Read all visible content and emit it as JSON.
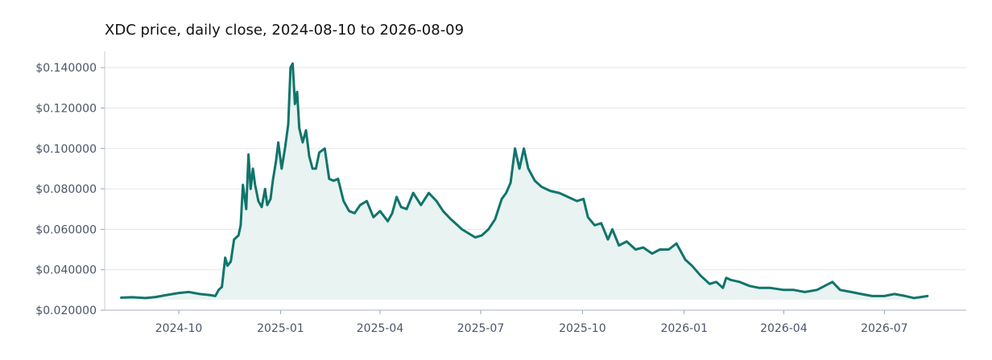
{
  "chart_data": {
    "type": "area",
    "title": "XDC price, daily close, 2024-08-10 to 2026-08-09",
    "xlabel": "",
    "ylabel": "",
    "ylim": [
      0.02,
      0.148
    ],
    "xlim": [
      "2024-07-26",
      "2026-09-13"
    ],
    "grid": "horizontal",
    "line_color": "#10756b",
    "fill_color": "#e9f3f1",
    "y_ticks": [
      "$0.020000",
      "$0.040000",
      "$0.060000",
      "$0.080000",
      "$0.100000",
      "$0.120000",
      "$0.140000"
    ],
    "x_ticks": [
      "2024-10",
      "2025-01",
      "2025-04",
      "2025-07",
      "2025-10",
      "2026-01",
      "2026-04",
      "2026-07"
    ],
    "series": [
      {
        "x": [
          "2024-08-10",
          "2024-08-20",
          "2024-09-01",
          "2024-09-10",
          "2024-09-20",
          "2024-10-01",
          "2024-10-10",
          "2024-10-20",
          "2024-10-29",
          "2024-11-03",
          "2024-11-06",
          "2024-11-08",
          "2024-11-09",
          "2024-11-12",
          "2024-11-14",
          "2024-11-17",
          "2024-11-20",
          "2024-11-24",
          "2024-11-26",
          "2024-11-28",
          "2024-12-01",
          "2024-12-03",
          "2024-12-05",
          "2024-12-07",
          "2024-12-09",
          "2024-12-12",
          "2024-12-15",
          "2024-12-18",
          "2024-12-20",
          "2024-12-23",
          "2024-12-25",
          "2024-12-28",
          "2024-12-30",
          "2025-01-02",
          "2025-01-05",
          "2025-01-08",
          "2025-01-10",
          "2025-01-12",
          "2025-01-14",
          "2025-01-16",
          "2025-01-18",
          "2025-01-21",
          "2025-01-24",
          "2025-01-27",
          "2025-01-30",
          "2025-02-02",
          "2025-02-05",
          "2025-02-10",
          "2025-02-14",
          "2025-02-18",
          "2025-02-22",
          "2025-02-27",
          "2025-03-04",
          "2025-03-09",
          "2025-03-14",
          "2025-03-20",
          "2025-03-26",
          "2025-04-01",
          "2025-04-08",
          "2025-04-12",
          "2025-04-16",
          "2025-04-20",
          "2025-04-25",
          "2025-05-01",
          "2025-05-08",
          "2025-05-15",
          "2025-05-22",
          "2025-05-28",
          "2025-06-04",
          "2025-06-10",
          "2025-06-14",
          "2025-06-20",
          "2025-06-26",
          "2025-07-02",
          "2025-07-08",
          "2025-07-14",
          "2025-07-20",
          "2025-07-24",
          "2025-07-28",
          "2025-08-01",
          "2025-08-05",
          "2025-08-09",
          "2025-08-13",
          "2025-08-19",
          "2025-08-25",
          "2025-09-02",
          "2025-09-10",
          "2025-09-18",
          "2025-09-26",
          "2025-10-02",
          "2025-10-06",
          "2025-10-12",
          "2025-10-18",
          "2025-10-24",
          "2025-10-28",
          "2025-11-03",
          "2025-11-10",
          "2025-11-18",
          "2025-11-25",
          "2025-12-03",
          "2025-12-10",
          "2025-12-18",
          "2025-12-25",
          "2026-01-02",
          "2026-01-08",
          "2026-01-16",
          "2026-01-24",
          "2026-01-30",
          "2026-02-05",
          "2026-02-08",
          "2026-02-12",
          "2026-02-20",
          "2026-03-01",
          "2026-03-10",
          "2026-03-20",
          "2026-04-01",
          "2026-04-10",
          "2026-04-20",
          "2026-05-01",
          "2026-05-08",
          "2026-05-15",
          "2026-05-22",
          "2026-06-01",
          "2026-06-10",
          "2026-06-20",
          "2026-07-01",
          "2026-07-10",
          "2026-07-20",
          "2026-07-28",
          "2026-08-09"
        ],
        "values": [
          0.0262,
          0.0264,
          0.026,
          0.0265,
          0.0275,
          0.0285,
          0.029,
          0.028,
          0.0275,
          0.027,
          0.03,
          0.031,
          0.0315,
          0.046,
          0.042,
          0.044,
          0.055,
          0.057,
          0.062,
          0.082,
          0.07,
          0.097,
          0.08,
          0.09,
          0.082,
          0.074,
          0.071,
          0.08,
          0.072,
          0.075,
          0.084,
          0.094,
          0.103,
          0.09,
          0.1,
          0.112,
          0.14,
          0.142,
          0.122,
          0.128,
          0.11,
          0.103,
          0.109,
          0.096,
          0.09,
          0.09,
          0.098,
          0.1,
          0.085,
          0.084,
          0.085,
          0.074,
          0.069,
          0.068,
          0.072,
          0.074,
          0.066,
          0.069,
          0.064,
          0.068,
          0.076,
          0.071,
          0.07,
          0.078,
          0.072,
          0.078,
          0.074,
          0.069,
          0.065,
          0.062,
          0.06,
          0.058,
          0.056,
          0.057,
          0.06,
          0.065,
          0.075,
          0.078,
          0.083,
          0.1,
          0.09,
          0.1,
          0.09,
          0.084,
          0.081,
          0.079,
          0.078,
          0.076,
          0.074,
          0.075,
          0.066,
          0.062,
          0.063,
          0.055,
          0.06,
          0.052,
          0.054,
          0.05,
          0.051,
          0.048,
          0.05,
          0.05,
          0.053,
          0.045,
          0.042,
          0.037,
          0.033,
          0.034,
          0.031,
          0.036,
          0.035,
          0.034,
          0.032,
          0.031,
          0.031,
          0.03,
          0.03,
          0.029,
          0.03,
          0.032,
          0.034,
          0.03,
          0.029,
          0.028,
          0.027,
          0.027,
          0.028,
          0.027,
          0.026,
          0.027
        ]
      }
    ]
  }
}
